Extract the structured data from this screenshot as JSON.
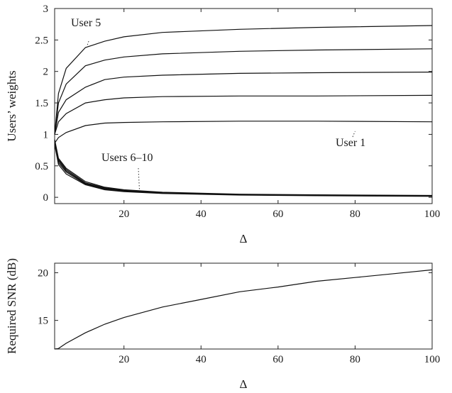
{
  "chart_data": [
    {
      "type": "line",
      "xlabel": "Δ",
      "ylabel": "Users’ weights",
      "xlim": [
        2,
        100
      ],
      "ylim": [
        -0.1,
        3
      ],
      "xticks": [
        20,
        40,
        60,
        80,
        100
      ],
      "yticks": [
        0,
        0.5,
        1,
        1.5,
        2,
        2.5,
        3
      ],
      "ytick_labels": [
        "0",
        "0.5",
        "1",
        "1.5",
        "2",
        "2.5",
        "3"
      ],
      "grid": false,
      "annotations": [
        {
          "text": "User 5",
          "x": 10.5,
          "y": 2.42
        },
        {
          "text": "User 1",
          "x": 80,
          "y": 1.05
        },
        {
          "text": "Users 6–10",
          "x": 24,
          "y": 0.13
        }
      ],
      "x": [
        2,
        3,
        5,
        10,
        15,
        20,
        30,
        50,
        70,
        100
      ],
      "series": [
        {
          "values": [
            1.0,
            1.5,
            1.8,
            2.09,
            2.18,
            2.23,
            2.28,
            2.32,
            2.34,
            2.36
          ]
        },
        {
          "values": [
            1.0,
            1.65,
            2.05,
            2.38,
            2.48,
            2.55,
            2.62,
            2.67,
            2.7,
            2.73
          ]
        },
        {
          "values": [
            1.0,
            1.35,
            1.55,
            1.75,
            1.87,
            1.91,
            1.94,
            1.97,
            1.98,
            1.99
          ]
        },
        {
          "values": [
            1.0,
            1.2,
            1.33,
            1.5,
            1.55,
            1.58,
            1.6,
            1.61,
            1.61,
            1.62
          ]
        },
        {
          "values": [
            0.86,
            0.95,
            1.03,
            1.14,
            1.18,
            1.19,
            1.2,
            1.21,
            1.21,
            1.2
          ]
        },
        {
          "values": [
            0.92,
            0.62,
            0.46,
            0.25,
            0.16,
            0.12,
            0.08,
            0.05,
            0.04,
            0.03
          ]
        },
        {
          "values": [
            0.9,
            0.6,
            0.44,
            0.23,
            0.15,
            0.11,
            0.075,
            0.045,
            0.035,
            0.025
          ]
        },
        {
          "values": [
            0.88,
            0.58,
            0.42,
            0.22,
            0.14,
            0.1,
            0.07,
            0.04,
            0.03,
            0.02
          ]
        },
        {
          "values": [
            0.86,
            0.55,
            0.4,
            0.21,
            0.13,
            0.095,
            0.065,
            0.04,
            0.03,
            0.02
          ]
        },
        {
          "values": [
            0.84,
            0.52,
            0.37,
            0.2,
            0.12,
            0.09,
            0.06,
            0.035,
            0.025,
            0.015
          ]
        }
      ]
    },
    {
      "type": "line",
      "xlabel": "Δ",
      "ylabel": "Required SNR (dB)",
      "xlim": [
        2,
        100
      ],
      "ylim": [
        12,
        21
      ],
      "xticks": [
        20,
        40,
        60,
        80,
        100
      ],
      "yticks": [
        15,
        20
      ],
      "grid": false,
      "x": [
        2,
        3,
        5,
        10,
        15,
        20,
        30,
        40,
        50,
        60,
        70,
        80,
        90,
        100
      ],
      "series": [
        {
          "values": [
            12.0,
            12.05,
            12.6,
            13.7,
            14.6,
            15.3,
            16.4,
            17.2,
            18.0,
            18.5,
            19.1,
            19.5,
            19.9,
            20.3
          ]
        }
      ]
    }
  ]
}
